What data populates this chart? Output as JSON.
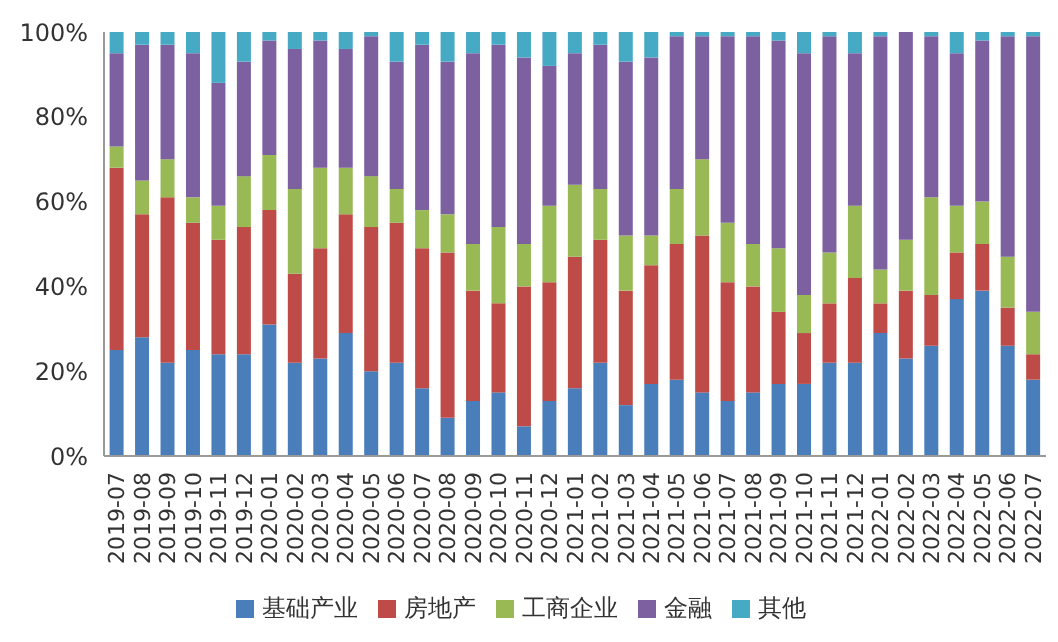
{
  "chart_data": {
    "type": "bar",
    "stacked": true,
    "legend": "bottom",
    "grid": false,
    "categories": [
      "2019-07",
      "2019-08",
      "2019-09",
      "2019-10",
      "2019-11",
      "2019-12",
      "2020-01",
      "2020-02",
      "2020-03",
      "2020-04",
      "2020-05",
      "2020-06",
      "2020-07",
      "2020-08",
      "2020-09",
      "2020-10",
      "2020-11",
      "2020-12",
      "2021-01",
      "2021-02",
      "2021-03",
      "2021-04",
      "2021-05",
      "2021-06",
      "2021-07",
      "2021-08",
      "2021-09",
      "2021-10",
      "2021-11",
      "2021-12",
      "2022-01",
      "2022-02",
      "2022-03",
      "2022-04",
      "2022-05",
      "2022-06",
      "2022-07"
    ],
    "ylim": [
      0,
      100
    ],
    "yticks": [
      {
        "value": 0,
        "label": "0%"
      },
      {
        "value": 20,
        "label": "20%"
      },
      {
        "value": 40,
        "label": "40%"
      },
      {
        "value": 60,
        "label": "60%"
      },
      {
        "value": 80,
        "label": "80%"
      },
      {
        "value": 100,
        "label": "100%"
      }
    ],
    "series": [
      {
        "name": "基础产业",
        "color": "#4a7ebb",
        "values": [
          25,
          28,
          22,
          25,
          24,
          24,
          31,
          22,
          23,
          29,
          20,
          22,
          16,
          9,
          13,
          15,
          7,
          13,
          16,
          22,
          12,
          17,
          18,
          15,
          13,
          15,
          17,
          17,
          22,
          22,
          29,
          23,
          26,
          37,
          39,
          26,
          18
        ]
      },
      {
        "name": "房地产",
        "color": "#be4b48",
        "values": [
          43,
          29,
          39,
          30,
          27,
          30,
          27,
          21,
          26,
          28,
          34,
          33,
          33,
          39,
          26,
          21,
          33,
          28,
          31,
          29,
          27,
          28,
          32,
          37,
          28,
          25,
          17,
          12,
          14,
          20,
          7,
          16,
          12,
          11,
          11,
          9,
          6
        ]
      },
      {
        "name": "工商企业",
        "color": "#98b954",
        "values": [
          5,
          8,
          9,
          6,
          8,
          12,
          13,
          20,
          19,
          11,
          12,
          8,
          9,
          9,
          11,
          18,
          10,
          18,
          17,
          12,
          13,
          7,
          13,
          18,
          14,
          10,
          15,
          9,
          12,
          17,
          8,
          12,
          23,
          11,
          10,
          12,
          10
        ]
      },
      {
        "name": "金融",
        "color": "#7d60a0",
        "values": [
          22,
          32,
          27,
          34,
          29,
          27,
          27,
          33,
          30,
          28,
          33,
          30,
          39,
          36,
          45,
          43,
          44,
          33,
          31,
          34,
          41,
          42,
          36,
          29,
          44,
          49,
          49,
          57,
          51,
          36,
          55,
          49,
          38,
          36,
          38,
          52,
          65
        ]
      },
      {
        "name": "其他",
        "color": "#46aac5",
        "values": [
          5,
          3,
          3,
          5,
          12,
          7,
          2,
          4,
          2,
          4,
          1,
          7,
          3,
          7,
          5,
          3,
          6,
          8,
          5,
          3,
          7,
          6,
          1,
          1,
          1,
          1,
          2,
          5,
          1,
          5,
          1,
          0,
          1,
          5,
          2,
          1,
          1
        ]
      }
    ]
  }
}
